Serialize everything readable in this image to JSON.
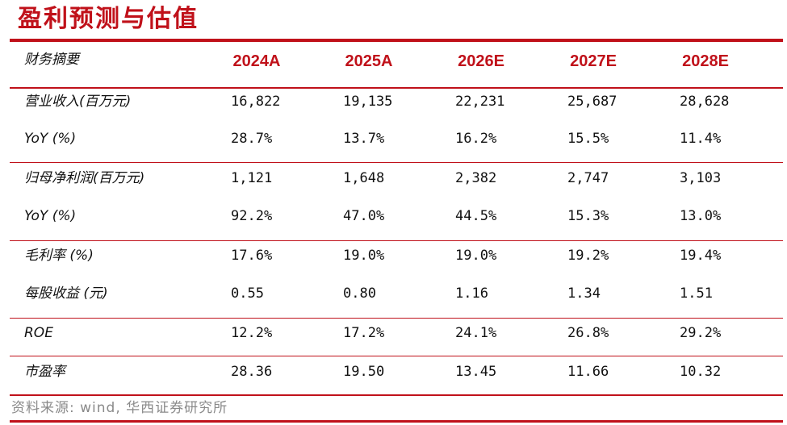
{
  "title": "盈利预测与估值",
  "header": {
    "label": "财务摘要",
    "years": [
      "2024A",
      "2025A",
      "2026E",
      "2027E",
      "2028E"
    ]
  },
  "rows": [
    {
      "label": "营业收入(百万元)",
      "values": [
        "16,822",
        "19,135",
        "22,231",
        "25,687",
        "28,628"
      ]
    },
    {
      "label": "YoY (%)",
      "values": [
        "28.7%",
        "13.7%",
        "16.2%",
        "15.5%",
        "11.4%"
      ]
    },
    {
      "label": "归母净利润(百万元)",
      "values": [
        "1,121",
        "1,648",
        "2,382",
        "2,747",
        "3,103"
      ]
    },
    {
      "label": "YoY (%)",
      "values": [
        "92.2%",
        "47.0%",
        "44.5%",
        "15.3%",
        "13.0%"
      ]
    },
    {
      "label": "毛利率 (%)",
      "values": [
        "17.6%",
        "19.0%",
        "19.0%",
        "19.2%",
        "19.4%"
      ]
    },
    {
      "label": "每股收益 (元)",
      "values": [
        "0.55",
        "0.80",
        "1.16",
        "1.34",
        "1.51"
      ]
    },
    {
      "label": "ROE",
      "values": [
        "12.2%",
        "17.2%",
        "24.1%",
        "26.8%",
        "29.2%"
      ]
    },
    {
      "label": "市盈率",
      "values": [
        "28.36",
        "19.50",
        "13.45",
        "11.66",
        "10.32"
      ]
    }
  ],
  "source": "资料来源: wind, 华西证券研究所",
  "colors": {
    "accent": "#c0111a",
    "source_text": "#8a8a8a"
  }
}
